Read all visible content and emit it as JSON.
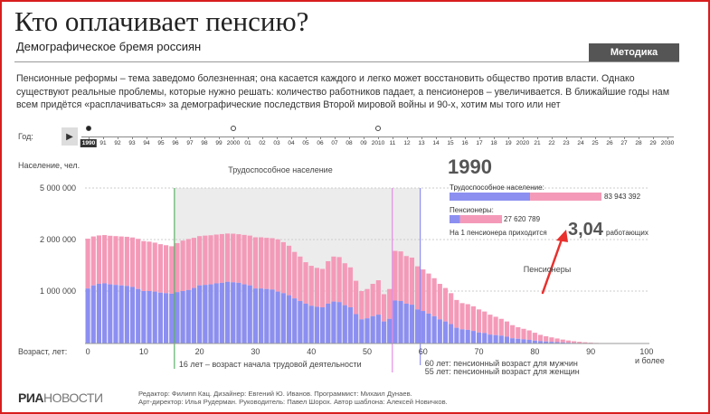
{
  "header": {
    "title": "Кто оплачивает пенсию?",
    "subtitle": "Демографическое бремя россиян",
    "method_button": "Методика"
  },
  "intro": "Пенсионные реформы – тема заведомо болезненная; она касается каждого и легко может восстановить общество против власти. Однако существуют реальные проблемы, которые нужно решать: количество работников падает, а пенсионеров – увеличивается. В ближайшие годы нам всем придётся «расплачиваться» за демографические последствия Второй мировой войны и 90-х, хотим мы того или нет",
  "timeline": {
    "label": "Год:",
    "selected_year": "1990",
    "years": [
      "1990",
      "91",
      "92",
      "93",
      "94",
      "95",
      "96",
      "97",
      "98",
      "99",
      "2000",
      "01",
      "02",
      "03",
      "04",
      "05",
      "06",
      "07",
      "08",
      "09",
      "2010",
      "11",
      "12",
      "13",
      "14",
      "15",
      "16",
      "17",
      "18",
      "19",
      "2020",
      "21",
      "22",
      "23",
      "24",
      "25",
      "26",
      "27",
      "28",
      "29",
      "2030"
    ],
    "marked_years": [
      "1990",
      "1995",
      "2000",
      "2005",
      "2010",
      "2015"
    ]
  },
  "info": {
    "year": "1990",
    "working_label": "Трудоспособное население:",
    "working_value": "83 943 392",
    "pensioners_label": "Пенсионеры:",
    "pensioners_value": "27 620 789",
    "ratio_prefix": "На 1 пенсионера приходится",
    "ratio_value": "3,04",
    "ratio_suffix": "работающих"
  },
  "chart_data": {
    "type": "bar",
    "ylabel": "Население, чел.",
    "xlabel": "Возраст, лет:",
    "y_ticks": [
      "5 000 000",
      "2 000 000",
      "1 000 000"
    ],
    "x_ticks": [
      "0",
      "10",
      "20",
      "30",
      "40",
      "50",
      "60",
      "70",
      "80",
      "90",
      "100"
    ],
    "last_label": "и более",
    "working_area_label": "Трудоспособное население",
    "pensioners_area_label": "Пенсионеры",
    "annotations": {
      "work_start": "16 лет – возраст начала трудовой деятельности",
      "men_pension": "60 лет: пенсионный возраст для мужчин",
      "women_pension": "55 лет: пенсионный возраст для женщин"
    },
    "series": [
      {
        "name": "men",
        "color": "#8c8ff0"
      },
      {
        "name": "women",
        "color": "#f49ab8"
      }
    ],
    "ages": [
      0,
      1,
      2,
      3,
      4,
      5,
      6,
      7,
      8,
      9,
      10,
      11,
      12,
      13,
      14,
      15,
      16,
      17,
      18,
      19,
      20,
      21,
      22,
      23,
      24,
      25,
      26,
      27,
      28,
      29,
      30,
      31,
      32,
      33,
      34,
      35,
      36,
      37,
      38,
      39,
      40,
      41,
      42,
      43,
      44,
      45,
      46,
      47,
      48,
      49,
      50,
      51,
      52,
      53,
      54,
      55,
      56,
      57,
      58,
      59,
      60,
      61,
      62,
      63,
      64,
      65,
      66,
      67,
      68,
      69,
      70,
      71,
      72,
      73,
      74,
      75,
      76,
      77,
      78,
      79,
      80,
      81,
      82,
      83,
      84,
      85,
      86,
      87,
      88,
      89,
      90,
      91,
      92,
      93,
      94,
      95,
      96,
      97,
      98,
      99,
      100
    ],
    "men_values": [
      1050000,
      1110000,
      1140000,
      1150000,
      1130000,
      1120000,
      1110000,
      1100000,
      1080000,
      1040000,
      1000000,
      1000000,
      990000,
      970000,
      960000,
      950000,
      980000,
      1000000,
      1020000,
      1060000,
      1110000,
      1120000,
      1130000,
      1150000,
      1160000,
      1180000,
      1170000,
      1160000,
      1130000,
      1110000,
      1050000,
      1050000,
      1040000,
      1030000,
      990000,
      960000,
      920000,
      860000,
      810000,
      760000,
      720000,
      700000,
      690000,
      760000,
      800000,
      790000,
      730000,
      690000,
      560000,
      460000,
      480000,
      520000,
      550000,
      420000,
      470000,
      820000,
      810000,
      760000,
      740000,
      650000,
      620000,
      570000,
      520000,
      460000,
      420000,
      370000,
      300000,
      270000,
      260000,
      240000,
      210000,
      200000,
      170000,
      160000,
      150000,
      130000,
      100000,
      90000,
      80000,
      70000,
      55000,
      45000,
      38000,
      32000,
      26000,
      20000,
      15000,
      11000,
      8000,
      6000,
      4000,
      3000,
      2000,
      1500,
      1000,
      700,
      500,
      300,
      200,
      100,
      100
    ],
    "women_values": [
      1000000,
      1070000,
      1100000,
      1110000,
      1090000,
      1080000,
      1070000,
      1060000,
      1040000,
      1000000,
      970000,
      960000,
      950000,
      940000,
      930000,
      920000,
      950000,
      980000,
      1010000,
      1040000,
      1090000,
      1110000,
      1120000,
      1140000,
      1160000,
      1170000,
      1170000,
      1150000,
      1140000,
      1120000,
      1080000,
      1080000,
      1060000,
      1050000,
      1020000,
      990000,
      960000,
      900000,
      860000,
      800000,
      770000,
      750000,
      740000,
      820000,
      870000,
      870000,
      810000,
      770000,
      640000,
      540000,
      560000,
      620000,
      660000,
      520000,
      570000,
      960000,
      960000,
      920000,
      910000,
      830000,
      800000,
      770000,
      730000,
      680000,
      640000,
      590000,
      530000,
      500000,
      490000,
      470000,
      440000,
      410000,
      380000,
      350000,
      320000,
      290000,
      250000,
      220000,
      200000,
      180000,
      150000,
      120000,
      100000,
      85000,
      70000,
      55000,
      42000,
      32000,
      24000,
      17000,
      12000,
      8000,
      5000,
      3500,
      2500,
      1500,
      1000,
      700,
      400,
      300,
      300
    ]
  }
}
